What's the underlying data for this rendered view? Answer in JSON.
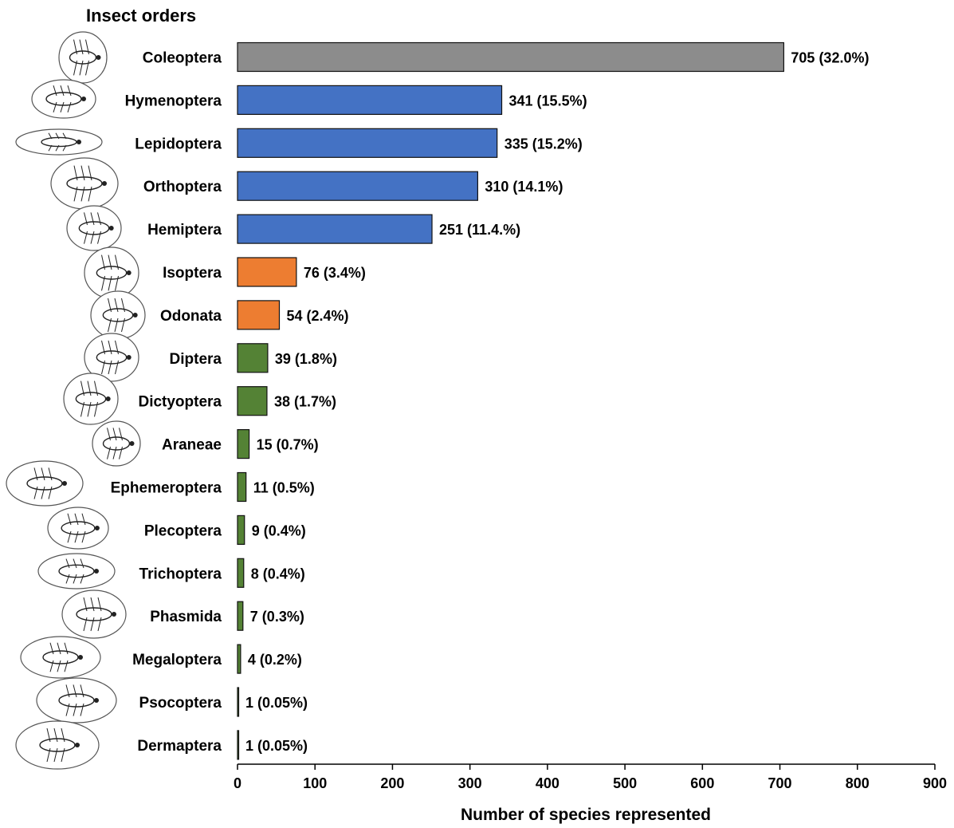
{
  "chart_data": {
    "type": "bar",
    "orientation": "horizontal",
    "title": "Insect orders",
    "xlabel": "Number of species represented",
    "xlim": [
      0,
      900
    ],
    "xticks": [
      0,
      100,
      200,
      300,
      400,
      500,
      600,
      700,
      800,
      900
    ],
    "grid": false,
    "legend": "none",
    "categories": [
      "Coleoptera",
      "Hymenoptera",
      "Lepidoptera",
      "Orthoptera",
      "Hemiptera",
      "Isoptera",
      "Odonata",
      "Diptera",
      "Dictyoptera",
      "Araneae",
      "Ephemeroptera",
      "Plecoptera",
      "Trichoptera",
      "Phasmida",
      "Megaloptera",
      "Psocoptera",
      "Dermaptera"
    ],
    "values": [
      705,
      341,
      335,
      310,
      251,
      76,
      54,
      39,
      38,
      15,
      11,
      9,
      8,
      7,
      4,
      1,
      1
    ],
    "value_labels": [
      "705",
      "341",
      "335",
      "310",
      "251",
      "76",
      "54",
      "39",
      "38",
      "15",
      "11",
      "9",
      "8",
      "7",
      "4",
      "1",
      "1"
    ],
    "percent_labels": [
      "(32.0%)",
      "(15.5%)",
      "(15.2%)",
      "(14.1%)",
      "(11.4.%)",
      "(3.4%)",
      "(2.4%)",
      "(1.8%)",
      "(1.7%)",
      "(0.7%)",
      "(0.5%)",
      "(0.4%)",
      "(0.4%)",
      "(0.3%)",
      "(0.2%)",
      "(0.05%)",
      "(0.05%)"
    ],
    "bar_colors": [
      "#8c8c8c",
      "#4472c4",
      "#4472c4",
      "#4472c4",
      "#4472c4",
      "#ed7d31",
      "#ed7d31",
      "#548235",
      "#548235",
      "#548235",
      "#548235",
      "#548235",
      "#548235",
      "#548235",
      "#548235",
      "#548235",
      "#548235"
    ],
    "icons": [
      "beetle-icon",
      "bee-icon",
      "caterpillar-icon",
      "grasshopper-icon",
      "shield-bug-icon",
      "termite-icon",
      "dragonfly-icon",
      "fly-icon",
      "cockroach-icon",
      "spider-icon",
      "mayfly-icon",
      "stonefly-icon",
      "caddisfly-icon",
      "stick-insect-icon",
      "dobsonfly-larva-icon",
      "booklouse-icon",
      "earwig-icon"
    ]
  }
}
